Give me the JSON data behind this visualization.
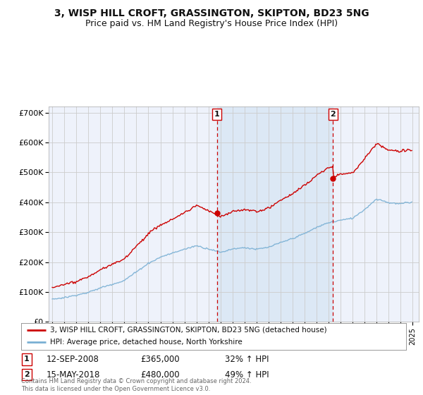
{
  "title": "3, WISP HILL CROFT, GRASSINGTON, SKIPTON, BD23 5NG",
  "subtitle": "Price paid vs. HM Land Registry's House Price Index (HPI)",
  "title_fontsize": 10,
  "subtitle_fontsize": 9,
  "background_color": "#ffffff",
  "plot_bg_color": "#eef2fb",
  "grid_color": "#cccccc",
  "ylabel_ticks": [
    "£0",
    "£100K",
    "£200K",
    "£300K",
    "£400K",
    "£500K",
    "£600K",
    "£700K"
  ],
  "ytick_values": [
    0,
    100000,
    200000,
    300000,
    400000,
    500000,
    600000,
    700000
  ],
  "ylim": [
    0,
    720000
  ],
  "xlim_start": 1994.7,
  "xlim_end": 2025.5,
  "sale1_x": 2008.71,
  "sale1_y": 365000,
  "sale1_label": "1",
  "sale1_date": "12-SEP-2008",
  "sale1_price": "£365,000",
  "sale1_hpi": "32% ↑ HPI",
  "sale2_x": 2018.37,
  "sale2_y": 480000,
  "sale2_label": "2",
  "sale2_date": "15-MAY-2018",
  "sale2_price": "£480,000",
  "sale2_hpi": "49% ↑ HPI",
  "legend_line1": "3, WISP HILL CROFT, GRASSINGTON, SKIPTON, BD23 5NG (detached house)",
  "legend_line2": "HPI: Average price, detached house, North Yorkshire",
  "footer": "Contains HM Land Registry data © Crown copyright and database right 2024.\nThis data is licensed under the Open Government Licence v3.0.",
  "line_color_red": "#cc0000",
  "line_color_blue": "#7ab0d4",
  "vline_color": "#cc0000",
  "shade_color": "#dce8f5"
}
